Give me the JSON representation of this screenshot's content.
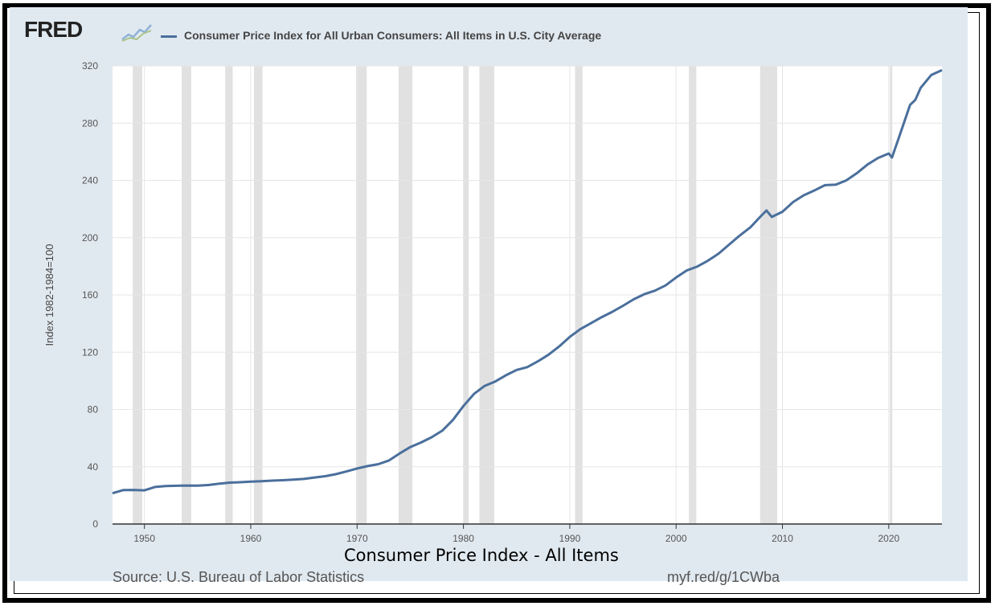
{
  "header": {
    "logo_text": "FRED",
    "logo_icon": "fred-sparkline-icon"
  },
  "caption": "Consumer Price Index - All Items",
  "footer": {
    "source": "Source: U.S. Bureau of Labor Statistics",
    "shortlink": "myf.red/g/1CWba"
  },
  "colors": {
    "series": "#4a6f9c",
    "recession": "#e1e1e1",
    "grid": "#e6e6e6",
    "panel": "#e1e9f0"
  },
  "chart_data": {
    "type": "line",
    "title": "",
    "xlabel": "",
    "ylabel": "Index 1982-1984=100",
    "xlim": [
      1947,
      2025
    ],
    "ylim": [
      0,
      320
    ],
    "y_ticks": [
      0,
      40,
      80,
      120,
      160,
      200,
      240,
      280,
      320
    ],
    "x_ticks": [
      1950,
      1960,
      1970,
      1980,
      1990,
      2000,
      2010,
      2020
    ],
    "grid": true,
    "legend_position": "top-left",
    "series": [
      {
        "name": "Consumer Price Index for All Urban Consumers: All Items in U.S. City Average",
        "x": [
          1947,
          1948,
          1949,
          1950,
          1951,
          1952,
          1953,
          1954,
          1955,
          1956,
          1957,
          1958,
          1959,
          1960,
          1961,
          1962,
          1963,
          1964,
          1965,
          1966,
          1967,
          1968,
          1969,
          1970,
          1971,
          1972,
          1973,
          1974,
          1975,
          1976,
          1977,
          1978,
          1979,
          1980,
          1981,
          1982,
          1983,
          1984,
          1985,
          1986,
          1987,
          1988,
          1989,
          1990,
          1991,
          1992,
          1993,
          1994,
          1995,
          1996,
          1997,
          1998,
          1999,
          2000,
          2001,
          2002,
          2003,
          2004,
          2005,
          2006,
          2007,
          2008,
          2008.5,
          2009,
          2010,
          2011,
          2012,
          2013,
          2014,
          2015,
          2016,
          2017,
          2018,
          2019,
          2020,
          2020.3,
          2021,
          2022,
          2022.5,
          2023,
          2024,
          2025
        ],
        "y": [
          21.5,
          23.7,
          23.8,
          23.5,
          25.9,
          26.5,
          26.7,
          26.9,
          26.8,
          27.2,
          28.1,
          28.9,
          29.2,
          29.6,
          29.9,
          30.3,
          30.6,
          31.0,
          31.5,
          32.5,
          33.4,
          34.8,
          36.7,
          38.8,
          40.5,
          41.8,
          44.4,
          49.3,
          53.8,
          56.9,
          60.6,
          65.2,
          72.6,
          82.4,
          90.9,
          96.5,
          99.6,
          103.9,
          107.6,
          109.6,
          113.6,
          118.3,
          124.0,
          130.7,
          136.2,
          140.3,
          144.5,
          148.2,
          152.4,
          156.9,
          160.5,
          163.0,
          166.6,
          172.2,
          177.1,
          179.9,
          184.0,
          188.9,
          195.3,
          201.6,
          207.3,
          215.3,
          219.0,
          214.5,
          218.1,
          224.9,
          229.6,
          233.0,
          236.7,
          237.0,
          240.0,
          245.1,
          251.1,
          255.7,
          258.8,
          256.0,
          271.0,
          292.7,
          296.3,
          304.7,
          313.7,
          317.0
        ]
      }
    ],
    "recessions": [
      [
        1948.9,
        1949.8
      ],
      [
        1953.5,
        1954.4
      ],
      [
        1957.6,
        1958.3
      ],
      [
        1960.3,
        1961.1
      ],
      [
        1969.9,
        1970.9
      ],
      [
        1973.9,
        1975.2
      ],
      [
        1980.0,
        1980.5
      ],
      [
        1981.5,
        1982.9
      ],
      [
        1990.5,
        1991.2
      ],
      [
        2001.2,
        2001.9
      ],
      [
        2007.9,
        2009.5
      ],
      [
        2020.1,
        2020.3
      ]
    ]
  }
}
